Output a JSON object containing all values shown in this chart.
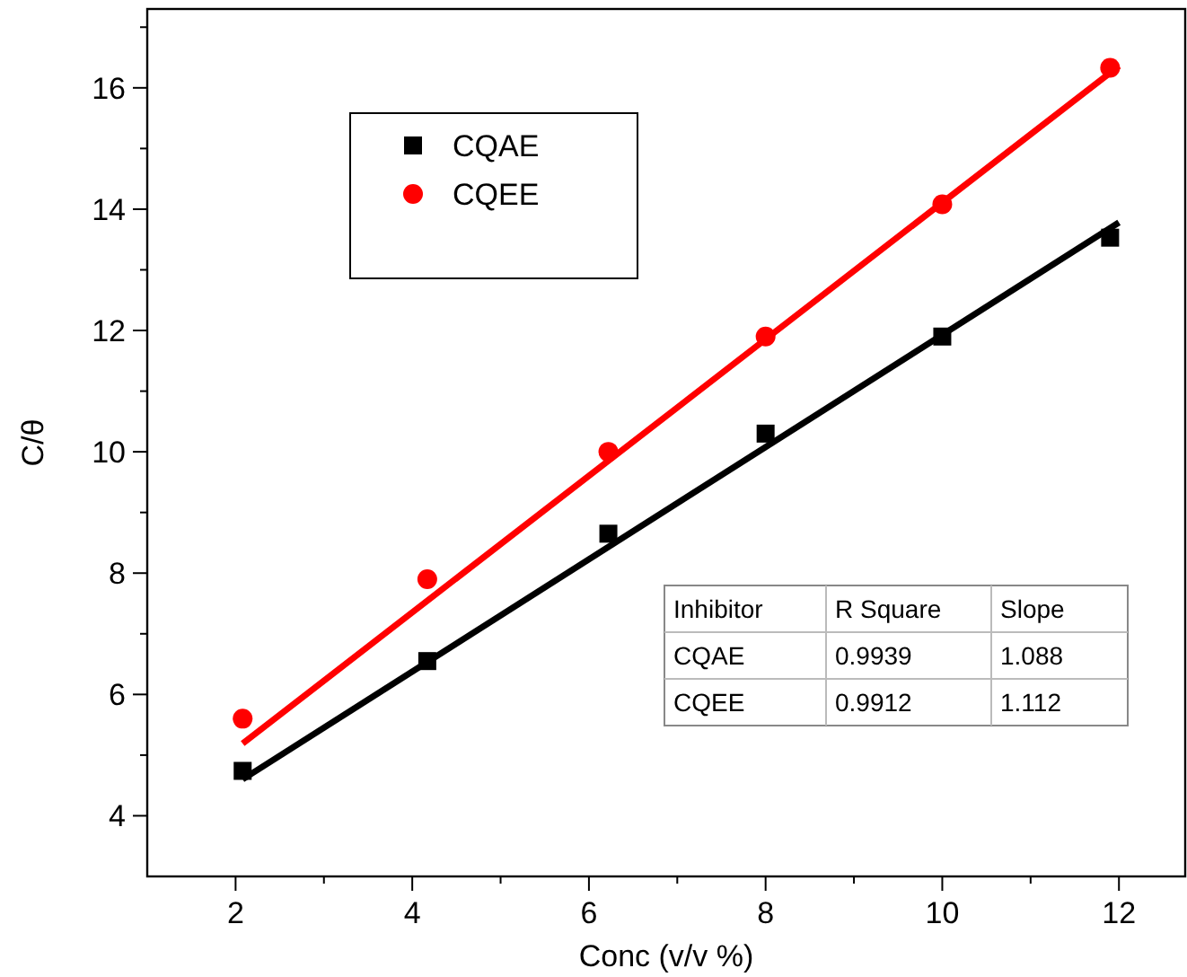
{
  "chart_data": {
    "type": "scatter",
    "xlabel": "Conc (v/v %)",
    "ylabel": "C/θ",
    "xlim": [
      1,
      12.75
    ],
    "ylim": [
      3,
      17.3
    ],
    "xticks": [
      2,
      4,
      6,
      8,
      10,
      12
    ],
    "yticks": [
      4,
      6,
      8,
      10,
      12,
      14,
      16
    ],
    "legend": "top left",
    "grid": false,
    "series": [
      {
        "name": "CQAE",
        "marker": "square",
        "color": "#000000",
        "x": [
          2.08,
          4.17,
          6.22,
          8.0,
          10.0,
          11.9
        ],
        "values": [
          4.74,
          6.55,
          8.65,
          10.3,
          11.9,
          13.53
        ]
      },
      {
        "name": "CQEE",
        "marker": "circle",
        "color": "#ff0000",
        "x": [
          2.08,
          4.17,
          6.22,
          8.0,
          10.0,
          11.9
        ],
        "values": [
          5.6,
          7.9,
          10.0,
          11.9,
          14.08,
          16.33
        ]
      },
      {
        "type": "line",
        "marker": "none",
        "color": "#000000",
        "x": [
          2.08,
          12.0
        ],
        "values": [
          4.6,
          13.78
        ]
      },
      {
        "type": "line",
        "marker": "none",
        "color": "#ff0000",
        "x": [
          2.08,
          12.0
        ],
        "values": [
          5.19,
          16.36
        ]
      }
    ],
    "annotations": [
      "Inhibitor",
      "R Square",
      "Slope",
      "CQAE",
      "0.9939",
      "1.088",
      "CQEE",
      "0.9912",
      "1.112"
    ]
  }
}
